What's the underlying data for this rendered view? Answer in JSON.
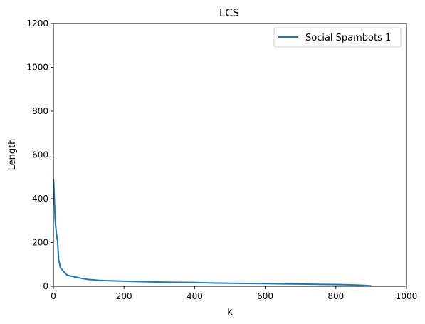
{
  "chart_data": {
    "type": "line",
    "title": "LCS",
    "xlabel": "k",
    "ylabel": "Length",
    "xlim": [
      0,
      1000
    ],
    "ylim": [
      0,
      1200
    ],
    "xticks": [
      0,
      200,
      400,
      600,
      800,
      1000
    ],
    "yticks": [
      0,
      200,
      400,
      600,
      800,
      1000,
      1200
    ],
    "grid": false,
    "legend": "top-right",
    "series": [
      {
        "name": "Social Spambots 1",
        "color": "#1f77b4",
        "x": [
          0,
          1,
          3,
          5,
          8,
          12,
          15,
          20,
          30,
          40,
          60,
          80,
          100,
          130,
          160,
          200,
          250,
          300,
          350,
          400,
          450,
          500,
          550,
          600,
          650,
          700,
          750,
          800,
          850,
          880,
          900
        ],
        "y": [
          490,
          470,
          390,
          300,
          250,
          200,
          120,
          85,
          65,
          50,
          43,
          36,
          31,
          27,
          25,
          23,
          21,
          19,
          18,
          17,
          15,
          14,
          13,
          12,
          11,
          10,
          9,
          8,
          6,
          4,
          2
        ]
      }
    ]
  }
}
